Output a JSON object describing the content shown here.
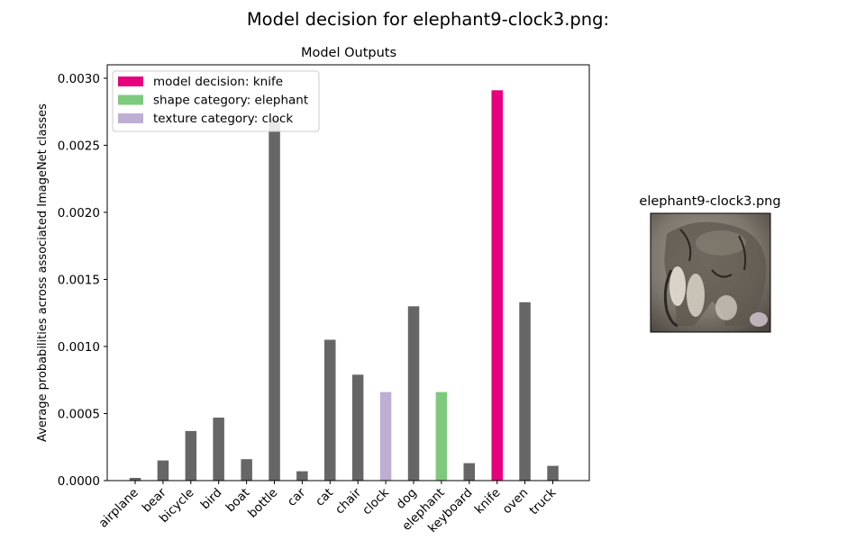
{
  "figure": {
    "suptitle": "Model decision for elephant9-clock3.png:",
    "thumbnail_title": "elephant9-clock3.png"
  },
  "chart_data": {
    "type": "bar",
    "title": "Model Outputs",
    "xlabel": "",
    "ylabel": "Average probabilities across associated ImageNet classes",
    "categories": [
      "airplane",
      "bear",
      "bicycle",
      "bird",
      "boat",
      "bottle",
      "car",
      "cat",
      "chair",
      "clock",
      "dog",
      "elephant",
      "keyboard",
      "knife",
      "oven",
      "truck"
    ],
    "values": [
      2e-05,
      0.00015,
      0.00037,
      0.00047,
      0.00016,
      0.0027,
      7e-05,
      0.00105,
      0.00079,
      0.00066,
      0.0013,
      0.00066,
      0.00013,
      0.00291,
      0.00133,
      0.00011
    ],
    "ylim": [
      0,
      0.0031
    ],
    "yticks": [
      0.0,
      0.0005,
      0.001,
      0.0015,
      0.002,
      0.0025,
      0.003
    ],
    "ytick_labels": [
      "0.0000",
      "0.0005",
      "0.0010",
      "0.0015",
      "0.0020",
      "0.0025",
      "0.0030"
    ],
    "grid": false,
    "legend_position": "top-left",
    "legend": [
      {
        "label": "model decision: knife",
        "color": "#e6007e"
      },
      {
        "label": "shape category: elephant",
        "color": "#7fc97f"
      },
      {
        "label": "texture category: clock",
        "color": "#beaed4"
      }
    ],
    "colors": {
      "default": "#666666",
      "knife": "#e6007e",
      "elephant": "#7fc97f",
      "clock": "#beaed4"
    }
  }
}
